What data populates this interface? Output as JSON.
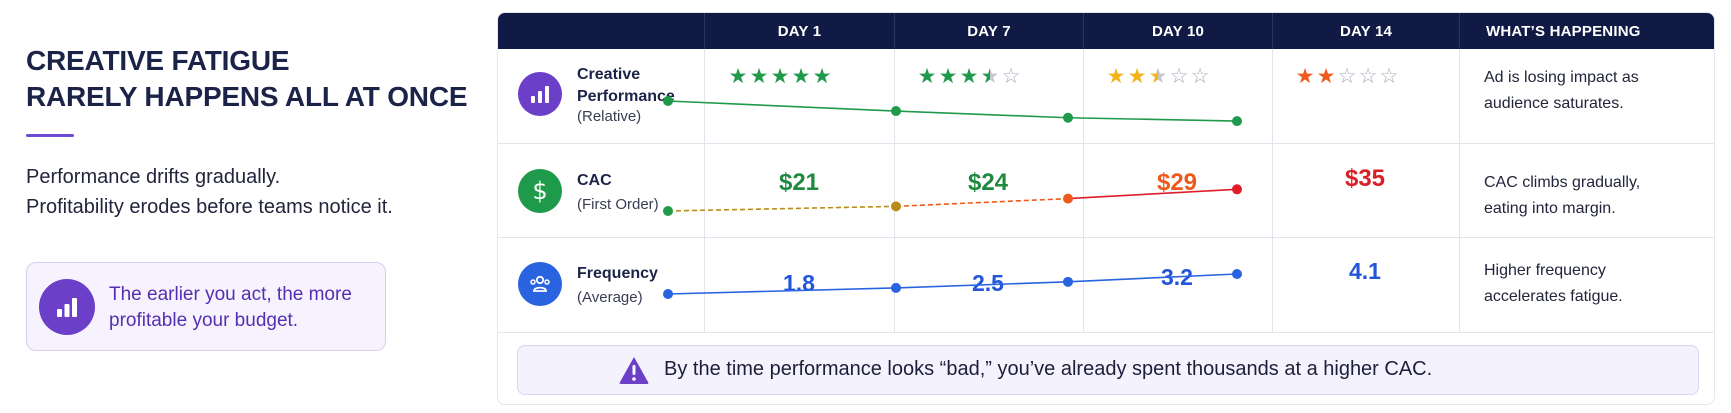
{
  "headline": {
    "line1": "CREATIVE FATIGUE",
    "line2": "RARELY HAPPENS ALL AT ONCE"
  },
  "lede": {
    "line1": "Performance drifts gradually.",
    "line2": "Profitability erodes before teams notice it."
  },
  "callout": {
    "icon": "bar-chart-icon",
    "line1": "The earlier you act, the more",
    "line2": "profitable your budget."
  },
  "table": {
    "headers": [
      "DAY 1",
      "DAY 7",
      "DAY 10",
      "DAY 14",
      "WHAT’S HAPPENING"
    ],
    "rows": [
      {
        "metric": "Creative",
        "metric_line2": "Performance",
        "sub": "(Relative)",
        "icon": "bar-chart-icon",
        "icon_color": "#6b3fc8",
        "ratings": [
          5,
          3.5,
          2.5,
          2
        ],
        "rating_colors": [
          "#1f9a4a",
          "#1f9a4a",
          "#f2b418",
          "#ee5a1d"
        ],
        "line_color": "#1f9a4a",
        "note1": "Ad is losing impact as",
        "note2": "audience saturates."
      },
      {
        "metric": "CAC",
        "sub": "(First Order)",
        "icon": "dollar-icon",
        "icon_color": "#1f9a4a",
        "values": [
          "$21",
          "$24",
          "$29",
          "$35"
        ],
        "value_colors": [
          "#1f8a3f",
          "#1f8a3f",
          "#ee5a1d",
          "#dc1f26"
        ],
        "point_colors": [
          "#1f9a4a",
          "#b88d17",
          "#ee5a1d",
          "#e11d2a"
        ],
        "note1": "CAC climbs gradually,",
        "note2": "eating into margin."
      },
      {
        "metric": "Frequency",
        "sub": "(Average)",
        "icon": "audience-icon",
        "icon_color": "#2a63e0",
        "values": [
          "1.8",
          "2.5",
          "3.2",
          "4.1"
        ],
        "line_color": "#2a63e0",
        "note1": "Higher frequency",
        "note2": "accelerates fatigue."
      }
    ]
  },
  "warning": {
    "icon": "warning-icon",
    "text": "By the time performance looks “bad,” you’ve already spent thousands at a higher CAC."
  }
}
